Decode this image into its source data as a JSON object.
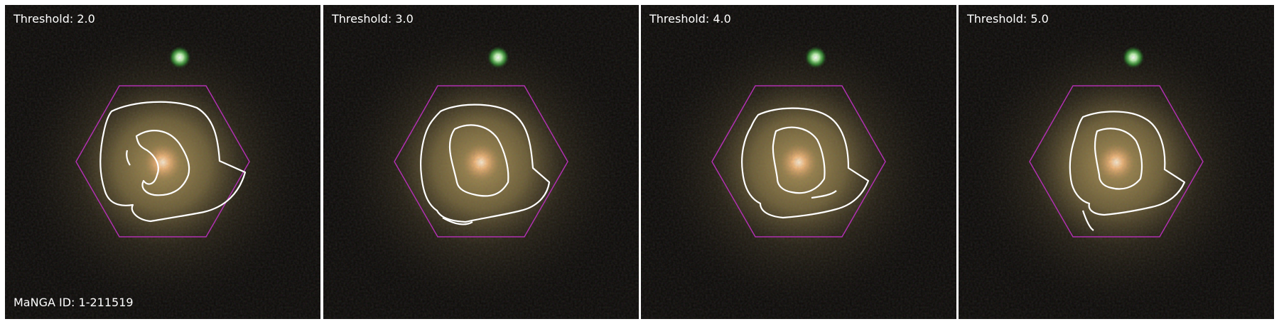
{
  "figure": {
    "panels": [
      {
        "threshold_label": "Threshold: 2.0"
      },
      {
        "threshold_label": "Threshold: 3.0"
      },
      {
        "threshold_label": "Threshold: 4.0"
      },
      {
        "threshold_label": "Threshold: 5.0"
      }
    ],
    "manga_id_label": "MaNGA ID: 1-211519"
  },
  "colors": {
    "background": "#0b0a07",
    "galaxy_core": "#ffd9a0",
    "galaxy_disk": "#8a7a45",
    "star_green": "#7dff7a",
    "hexagon": "#b030b0",
    "contour": "#ffffff"
  }
}
